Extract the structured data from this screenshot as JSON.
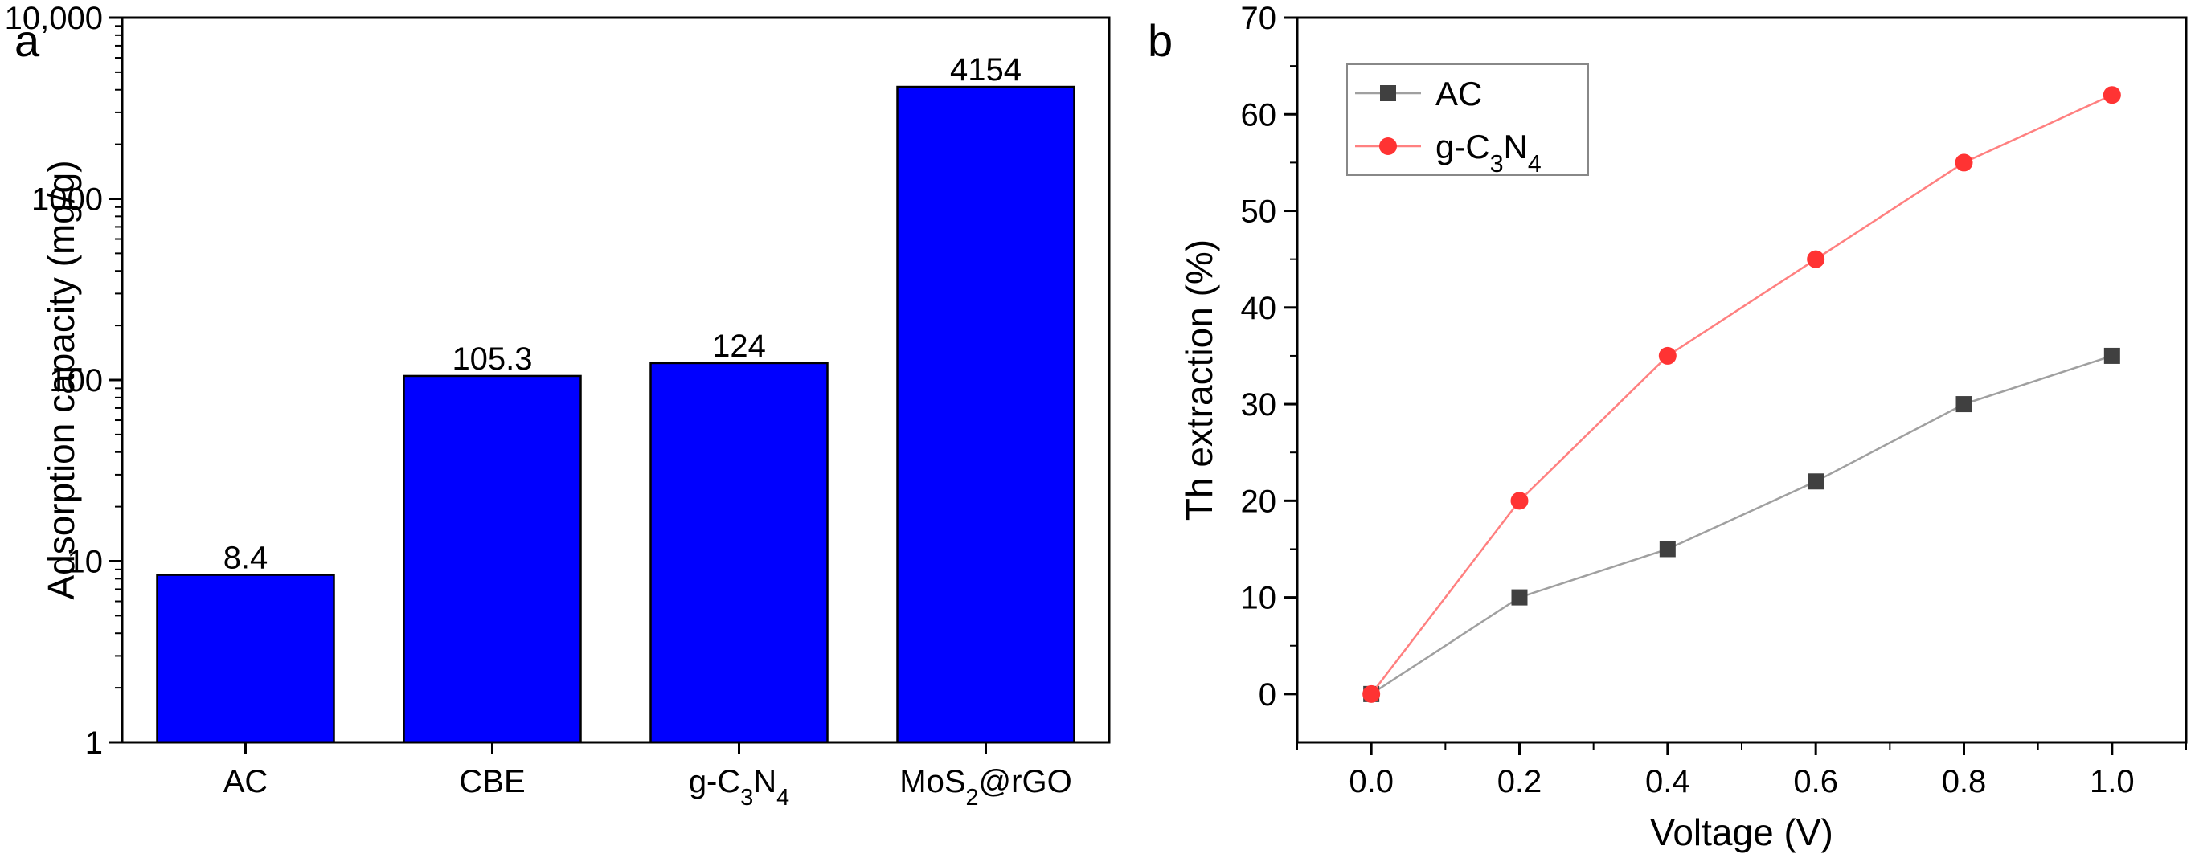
{
  "panels": [
    {
      "label": "a"
    },
    {
      "label": "b"
    }
  ],
  "chart_data": [
    {
      "type": "bar",
      "panel": "a",
      "yscale": "log",
      "categories": [
        {
          "name": "AC",
          "sub": [],
          "tail": ""
        },
        {
          "name": "CBE",
          "sub": [],
          "tail": ""
        },
        {
          "name": "g-C",
          "sub": [
            "3",
            "N",
            "4"
          ],
          "tail": ""
        },
        {
          "name": "MoS",
          "sub": [
            "2"
          ],
          "tail": "@rGO"
        }
      ],
      "category_labels": [
        "AC",
        "CBE",
        "g-C3N4",
        "MoS2@rGO"
      ],
      "values": [
        8.4,
        105.3,
        124,
        4154
      ],
      "value_labels": [
        "8.4",
        "105.3",
        "124",
        "4154"
      ],
      "xlabel": "",
      "ylabel": "Adsorption capacity (mg/g)",
      "ylim": [
        1,
        10000
      ],
      "yticks": [
        1,
        10,
        100,
        1000,
        10000
      ],
      "ytick_labels": [
        "1",
        "10",
        "100",
        "1000",
        "10,000"
      ],
      "bar_color": "#0000ff",
      "bar_edge_color": "#000000"
    },
    {
      "type": "line",
      "panel": "b",
      "xlabel": "Voltage (V)",
      "ylabel": "Th extraction (%)",
      "xlim": [
        -0.1,
        1.1
      ],
      "ylim": [
        -5,
        70
      ],
      "xticks": [
        0.0,
        0.2,
        0.4,
        0.6,
        0.8,
        1.0
      ],
      "xtick_labels": [
        "0.0",
        "0.2",
        "0.4",
        "0.6",
        "0.8",
        "1.0"
      ],
      "yticks": [
        0,
        10,
        20,
        30,
        40,
        50,
        60,
        70
      ],
      "ytick_labels": [
        "0",
        "10",
        "20",
        "30",
        "40",
        "50",
        "60",
        "70"
      ],
      "legend_position": "top-left",
      "series": [
        {
          "name": "AC",
          "marker": "square",
          "color": "#404040",
          "line_color": "#a0a0a0",
          "x": [
            0.0,
            0.2,
            0.4,
            0.6,
            0.8,
            1.0
          ],
          "y": [
            0,
            10,
            15,
            22,
            30,
            35
          ]
        },
        {
          "name": "g-C3N4",
          "marker": "circle",
          "color": "#ff3333",
          "line_color": "#ff8080",
          "x": [
            0.0,
            0.2,
            0.4,
            0.6,
            0.8,
            1.0
          ],
          "y": [
            0,
            20,
            35,
            45,
            55,
            62
          ]
        }
      ]
    }
  ]
}
